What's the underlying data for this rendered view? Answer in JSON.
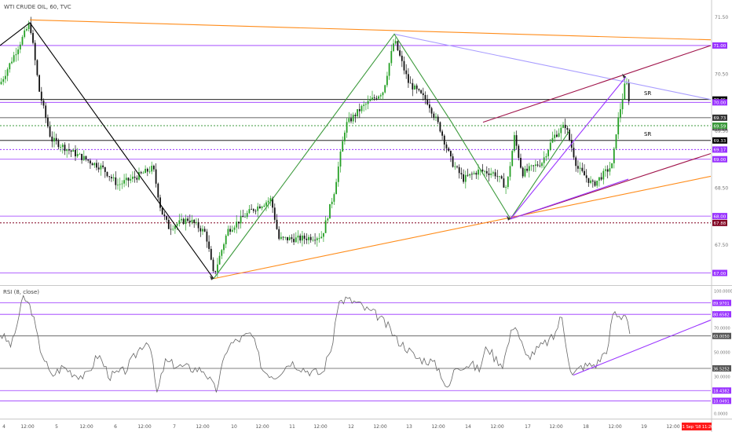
{
  "header": {
    "title": "WTI CRUDE OIL, 60, TVC",
    "rsi_label": "RSI (8, close)"
  },
  "colors": {
    "up": "#25a025",
    "down": "#111111",
    "orange": "#ff8c1a",
    "violet": "#9933ff",
    "green": "#3c9a3c",
    "maroon": "#a0144b",
    "lavender": "#a89cff",
    "black": "#000000",
    "red_badge": "#ff1a1a",
    "dark_red": "#800020"
  },
  "chart_data": {
    "type": "candlestick",
    "symbol": "WTI CRUDE OIL",
    "interval": "60",
    "source": "TVC",
    "price_axis": {
      "range": [
        66.8,
        71.8
      ],
      "ticks": [
        {
          "value": 71.5,
          "label": "71.50"
        },
        {
          "value": 70.5,
          "label": "70.50"
        },
        {
          "value": 69.5,
          "label": "69.50"
        },
        {
          "value": 68.5,
          "label": "68.50"
        },
        {
          "value": 67.5,
          "label": "67.50"
        }
      ]
    },
    "price_levels": [
      {
        "value": 71.0,
        "label": "71.00",
        "color": "#9933ff",
        "line": "solid"
      },
      {
        "value": 70.05,
        "label": "70.05",
        "color": "#000000",
        "line": "solid"
      },
      {
        "value": 70.0,
        "label": "70.00",
        "color": "#9933ff",
        "line": "solid"
      },
      {
        "value": 69.73,
        "label": "69.73",
        "color": "#333333",
        "line": "solid"
      },
      {
        "value": 69.56,
        "label": "69.56",
        "color": "#555555",
        "line": "none"
      },
      {
        "value": 69.59,
        "label": "69.59",
        "color": "#3c9a3c",
        "line": "dotted"
      },
      {
        "value": 69.33,
        "label": "69.33",
        "color": "#000000",
        "line": "solid"
      },
      {
        "value": 69.17,
        "label": "69.17",
        "color": "#9933ff",
        "line": "dotted"
      },
      {
        "value": 69.0,
        "label": "69.00",
        "color": "#9933ff",
        "line": "solid"
      },
      {
        "value": 68.0,
        "label": "68.00",
        "color": "#9933ff",
        "line": "solid"
      },
      {
        "value": 67.88,
        "label": "67.88",
        "color": "#800020",
        "line": "dotted"
      },
      {
        "value": 67.0,
        "label": "67.00",
        "color": "#9933ff",
        "line": "solid"
      }
    ],
    "sr_labels": [
      {
        "text": "SR",
        "value": 70.1
      },
      {
        "text": "SR",
        "value": 69.38
      }
    ],
    "x_axis": {
      "labels": [
        {
          "x": 5,
          "label": "4"
        },
        {
          "x": 35,
          "label": "12:00"
        },
        {
          "x": 72,
          "label": "5"
        },
        {
          "x": 110,
          "label": "12:00"
        },
        {
          "x": 147,
          "label": "6"
        },
        {
          "x": 184,
          "label": "12:00"
        },
        {
          "x": 222,
          "label": "7"
        },
        {
          "x": 258,
          "label": "12:00"
        },
        {
          "x": 298,
          "label": "10"
        },
        {
          "x": 334,
          "label": "12:00"
        },
        {
          "x": 372,
          "label": "11"
        },
        {
          "x": 408,
          "label": "12:00"
        },
        {
          "x": 447,
          "label": "12"
        },
        {
          "x": 484,
          "label": "12:00"
        },
        {
          "x": 521,
          "label": "13"
        },
        {
          "x": 558,
          "label": "12:00"
        },
        {
          "x": 596,
          "label": "14"
        },
        {
          "x": 633,
          "label": "12:00"
        },
        {
          "x": 672,
          "label": "17"
        },
        {
          "x": 708,
          "label": "12:00"
        },
        {
          "x": 746,
          "label": "18"
        },
        {
          "x": 783,
          "label": "12:00"
        },
        {
          "x": 820,
          "label": "19"
        },
        {
          "x": 857,
          "label": "12:00"
        }
      ],
      "current_time": "21 Sep '18  11:20"
    },
    "anchors": [
      [
        0,
        70.32
      ],
      [
        38,
        71.4
      ],
      [
        50,
        70.2
      ],
      [
        65,
        69.35
      ],
      [
        95,
        69.1
      ],
      [
        130,
        68.85
      ],
      [
        150,
        68.55
      ],
      [
        175,
        68.7
      ],
      [
        195,
        68.85
      ],
      [
        205,
        68.1
      ],
      [
        215,
        67.8
      ],
      [
        240,
        67.95
      ],
      [
        262,
        67.7
      ],
      [
        272,
        66.95
      ],
      [
        290,
        67.75
      ],
      [
        320,
        68.1
      ],
      [
        345,
        68.3
      ],
      [
        355,
        67.6
      ],
      [
        380,
        67.6
      ],
      [
        410,
        67.65
      ],
      [
        425,
        68.4
      ],
      [
        440,
        69.6
      ],
      [
        460,
        69.9
      ],
      [
        488,
        70.2
      ],
      [
        502,
        71.1
      ],
      [
        520,
        70.35
      ],
      [
        545,
        70.0
      ],
      [
        560,
        69.55
      ],
      [
        575,
        68.95
      ],
      [
        590,
        68.65
      ],
      [
        610,
        68.8
      ],
      [
        630,
        68.75
      ],
      [
        645,
        68.5
      ],
      [
        655,
        69.4
      ],
      [
        665,
        68.75
      ],
      [
        690,
        68.95
      ],
      [
        705,
        69.4
      ],
      [
        720,
        69.6
      ],
      [
        735,
        68.85
      ],
      [
        755,
        68.55
      ],
      [
        780,
        68.9
      ],
      [
        785,
        69.55
      ],
      [
        797,
        70.4
      ],
      [
        803,
        69.85
      ]
    ],
    "overlay_lines": [
      {
        "name": "orange-top-trendline",
        "color": "#ff8c1a",
        "points": [
          [
            38,
            71.45
          ],
          [
            905,
            71.1
          ]
        ]
      },
      {
        "name": "orange-bottom-trendline",
        "color": "#ff8c1a",
        "points": [
          [
            272,
            66.9
          ],
          [
            905,
            68.7
          ]
        ]
      },
      {
        "name": "lavender-trendline",
        "color": "#a89cff",
        "points": [
          [
            502,
            71.2
          ],
          [
            905,
            70.05
          ]
        ]
      },
      {
        "name": "maroon-channel-top",
        "color": "#a0144b",
        "points": [
          [
            615,
            69.65
          ],
          [
            905,
            71.0
          ]
        ]
      },
      {
        "name": "maroon-channel-bottom",
        "color": "#a0144b",
        "points": [
          [
            650,
            67.95
          ],
          [
            905,
            69.1
          ]
        ]
      },
      {
        "name": "black-zigzag",
        "color": "#000000",
        "points": [
          [
            0,
            71.0
          ],
          [
            38,
            71.4
          ],
          [
            272,
            66.9
          ]
        ]
      },
      {
        "name": "green-zigzag",
        "color": "#3c9a3c",
        "points": [
          [
            272,
            66.9
          ],
          [
            502,
            71.2
          ],
          [
            575,
            69.65
          ],
          [
            650,
            67.95
          ],
          [
            725,
            69.5
          ]
        ]
      },
      {
        "name": "violet-wedge",
        "color": "#9933ff",
        "points": [
          [
            650,
            67.95
          ],
          [
            797,
            70.45
          ]
        ]
      },
      {
        "name": "violet-lower-leg",
        "color": "#9933ff",
        "points": [
          [
            650,
            67.95
          ],
          [
            800,
            68.65
          ]
        ]
      }
    ],
    "rsi": {
      "range": [
        0,
        100
      ],
      "ticks": [
        {
          "value": 100,
          "label": "100.0000"
        },
        {
          "value": 70,
          "label": "70.0000"
        },
        {
          "value": 50,
          "label": "50.0000"
        },
        {
          "value": 30,
          "label": "30.0000"
        },
        {
          "value": 0,
          "label": "0.0000"
        }
      ],
      "levels": [
        {
          "value": 89.9701,
          "label": "89.9701",
          "color": "#9933ff"
        },
        {
          "value": 80.6582,
          "label": "80.6582",
          "color": "#9933ff"
        },
        {
          "value": 63.005,
          "label": "63.0050",
          "color": "#555555"
        },
        {
          "value": 36.5252,
          "label": "36.5252",
          "color": "#555555"
        },
        {
          "value": 18.4382,
          "label": "18.4382",
          "color": "#9933ff"
        },
        {
          "value": 10.0491,
          "label": "10.0491",
          "color": "#9933ff"
        }
      ],
      "anchors": [
        [
          0,
          65
        ],
        [
          15,
          55
        ],
        [
          30,
          95
        ],
        [
          40,
          85
        ],
        [
          50,
          55
        ],
        [
          65,
          30
        ],
        [
          80,
          38
        ],
        [
          95,
          32
        ],
        [
          110,
          30
        ],
        [
          125,
          48
        ],
        [
          140,
          30
        ],
        [
          160,
          35
        ],
        [
          180,
          55
        ],
        [
          190,
          60
        ],
        [
          200,
          15
        ],
        [
          210,
          42
        ],
        [
          230,
          38
        ],
        [
          260,
          35
        ],
        [
          275,
          18
        ],
        [
          290,
          55
        ],
        [
          310,
          62
        ],
        [
          320,
          65
        ],
        [
          335,
          35
        ],
        [
          350,
          30
        ],
        [
          370,
          42
        ],
        [
          390,
          35
        ],
        [
          410,
          32
        ],
        [
          425,
          60
        ],
        [
          430,
          90
        ],
        [
          440,
          93
        ],
        [
          455,
          90
        ],
        [
          465,
          85
        ],
        [
          480,
          80
        ],
        [
          495,
          70
        ],
        [
          505,
          60
        ],
        [
          515,
          55
        ],
        [
          530,
          45
        ],
        [
          550,
          42
        ],
        [
          560,
          35
        ],
        [
          570,
          18
        ],
        [
          580,
          38
        ],
        [
          600,
          40
        ],
        [
          610,
          35
        ],
        [
          620,
          55
        ],
        [
          630,
          45
        ],
        [
          640,
          40
        ],
        [
          655,
          75
        ],
        [
          670,
          45
        ],
        [
          690,
          55
        ],
        [
          705,
          62
        ],
        [
          715,
          80
        ],
        [
          720,
          60
        ],
        [
          728,
          30
        ],
        [
          740,
          38
        ],
        [
          760,
          40
        ],
        [
          775,
          55
        ],
        [
          780,
          82
        ],
        [
          790,
          78
        ],
        [
          797,
          83
        ],
        [
          803,
          62
        ]
      ],
      "trendline": {
        "color": "#9933ff",
        "points": [
          [
            730,
            31
          ],
          [
            905,
            76
          ]
        ]
      }
    }
  }
}
